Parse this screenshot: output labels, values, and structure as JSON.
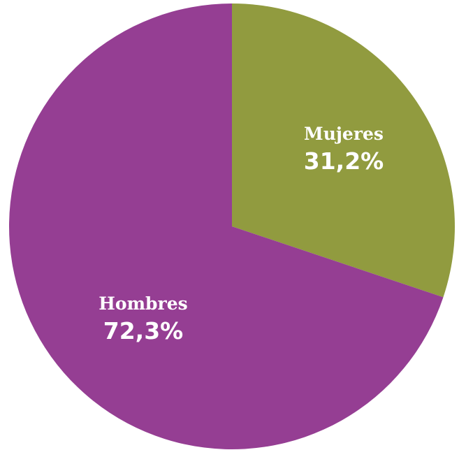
{
  "chart_data": {
    "type": "pie",
    "start": "12 o'clock",
    "direction": "clockwise",
    "slices": [
      {
        "label": "Mujeres",
        "value": 31.2,
        "value_label": "31,2%",
        "color": "#919b3f"
      },
      {
        "label": "Hombres",
        "value": 72.3,
        "value_label": "72,3%",
        "color": "#953e93"
      }
    ]
  }
}
